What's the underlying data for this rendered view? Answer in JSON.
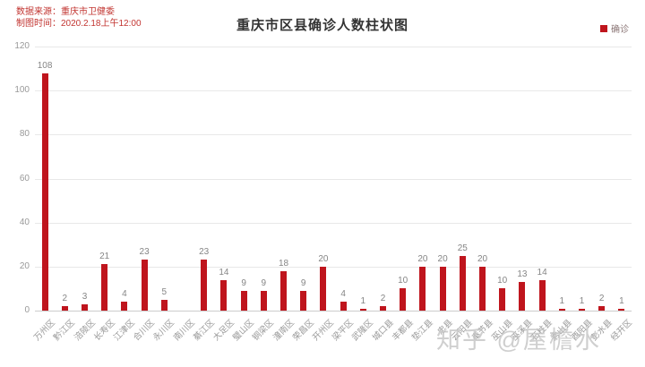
{
  "source": {
    "line1": "数据来源：重庆市卫健委",
    "line2": "制图时间：2020.2.18上午12:00"
  },
  "header": {
    "title": "重庆市区县确诊人数柱状图"
  },
  "legend": {
    "label": "确诊"
  },
  "watermark": {
    "text": "知乎 @屋檐水"
  },
  "colors": {
    "bar": "#bf151d",
    "source_text": "#c23531",
    "gridline": "#e8e8e8",
    "axis_line": "#cccccc",
    "tick_text": "#999999",
    "value_label_text": "#858585",
    "watermark_text": "#c4c4c4"
  },
  "chart_data": {
    "type": "bar",
    "title": "重庆市区县确诊人数柱状图",
    "series_name": "确诊",
    "categories": [
      "万州区",
      "黔江区",
      "涪陵区",
      "长寿区",
      "江津区",
      "合川区",
      "永川区",
      "南川区",
      "綦江区",
      "大足区",
      "璧山区",
      "铜梁区",
      "潼南区",
      "荣昌区",
      "开州区",
      "梁平区",
      "武隆区",
      "城口县",
      "丰都县",
      "垫江县",
      "忠县",
      "云阳县",
      "奉节县",
      "巫山县",
      "巫溪县",
      "石柱县",
      "秀山县",
      "酉阳县",
      "彭水县",
      "经开区"
    ],
    "values": [
      108,
      2,
      3,
      21,
      4,
      23,
      5,
      null,
      23,
      14,
      9,
      9,
      18,
      9,
      20,
      4,
      1,
      2,
      10,
      20,
      20,
      25,
      20,
      10,
      13,
      14,
      1,
      1,
      2,
      1
    ],
    "xlabel": "",
    "ylabel": "",
    "ylim": [
      0,
      120
    ],
    "yticks": [
      0,
      20,
      40,
      60,
      80,
      100,
      120
    ],
    "grid": true,
    "legend_position": "top-right",
    "value_labels_shown": true,
    "bar_color": "#bf151d"
  }
}
